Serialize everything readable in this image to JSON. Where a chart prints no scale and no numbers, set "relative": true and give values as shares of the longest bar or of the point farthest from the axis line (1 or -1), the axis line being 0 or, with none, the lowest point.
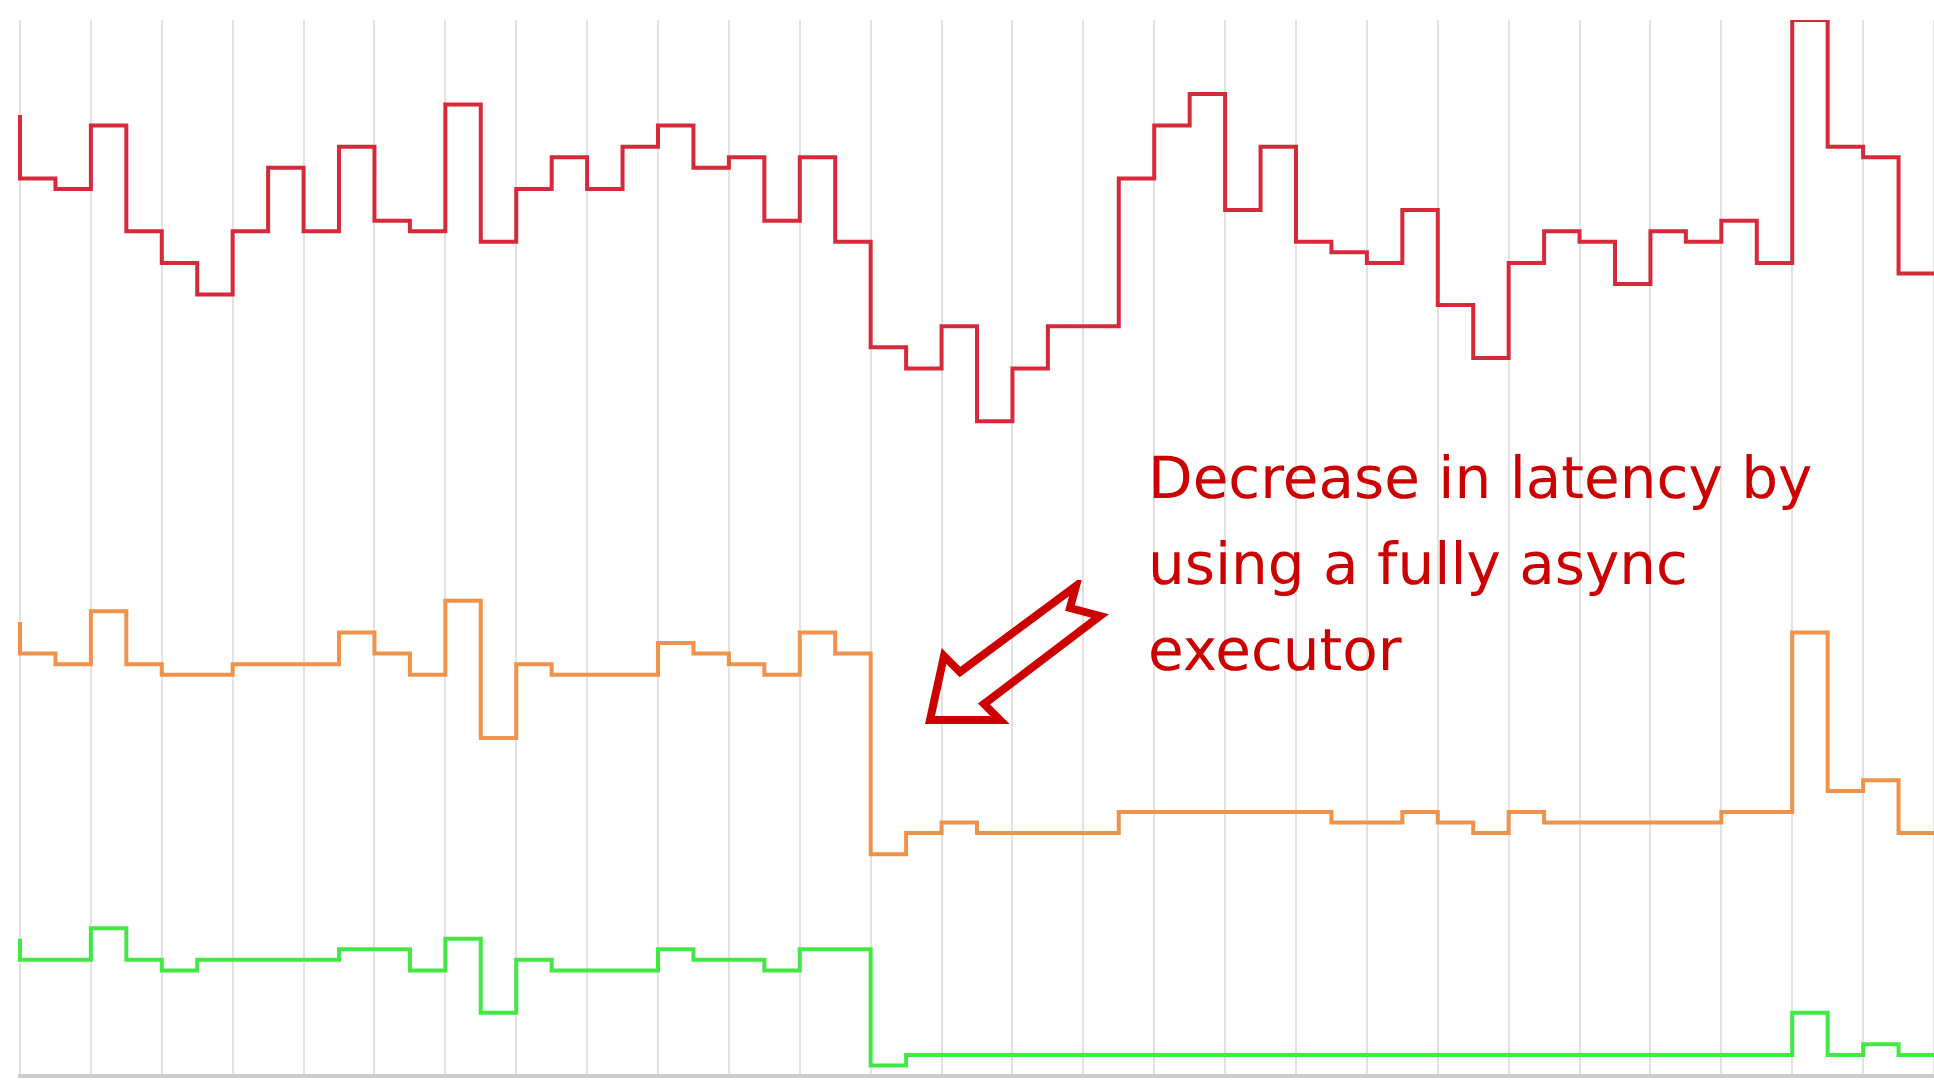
{
  "chart_data": {
    "type": "step",
    "relative": true,
    "grid": "x",
    "legend": false,
    "categories": [
      null,
      null,
      null,
      null,
      null,
      null,
      null,
      null,
      null,
      null,
      null,
      null,
      null,
      null,
      null,
      null,
      null,
      null,
      null,
      null,
      null,
      null,
      null,
      null,
      null,
      null,
      null,
      null,
      null,
      null,
      null,
      null,
      null,
      null,
      null,
      null,
      null,
      null,
      null,
      null,
      null,
      null,
      null,
      null,
      null,
      null,
      null,
      null,
      null,
      null,
      null,
      null,
      null,
      null,
      null
    ],
    "series": [
      {
        "color": "#d42a3a",
        "values": [
          0.91,
          0.85,
          0.84,
          0.9,
          0.8,
          0.77,
          0.74,
          0.8,
          0.86,
          0.8,
          0.88,
          0.81,
          0.8,
          0.92,
          0.79,
          0.84,
          0.87,
          0.84,
          0.88,
          0.9,
          0.86,
          0.87,
          0.81,
          0.87,
          0.79,
          0.69,
          0.67,
          0.71,
          0.62,
          0.67,
          0.71,
          0.71,
          0.85,
          0.9,
          0.93,
          0.82,
          0.88,
          0.79,
          0.78,
          0.77,
          0.82,
          0.73,
          0.68,
          0.77,
          0.8,
          0.79,
          0.75,
          0.8,
          0.79,
          0.81,
          0.77,
          1,
          0.88,
          0.87,
          0.76
        ]
      },
      {
        "color": "#f0924a",
        "values": [
          0.43,
          0.4,
          0.39,
          0.44,
          0.39,
          0.38,
          0.38,
          0.39,
          0.39,
          0.39,
          0.42,
          0.4,
          0.38,
          0.45,
          0.32,
          0.39,
          0.38,
          0.38,
          0.38,
          0.41,
          0.4,
          0.39,
          0.38,
          0.42,
          0.4,
          0.21,
          0.23,
          0.24,
          0.23,
          0.23,
          0.23,
          0.23,
          0.25,
          0.25,
          0.25,
          0.25,
          0.25,
          0.25,
          0.24,
          0.24,
          0.25,
          0.24,
          0.23,
          0.25,
          0.24,
          0.24,
          0.24,
          0.24,
          0.24,
          0.25,
          0.25,
          0.42,
          0.27,
          0.28,
          0.23
        ]
      },
      {
        "color": "#44e844",
        "values": [
          0.13,
          0.11,
          0.11,
          0.14,
          0.11,
          0.1,
          0.11,
          0.11,
          0.11,
          0.11,
          0.12,
          0.12,
          0.1,
          0.13,
          0.06,
          0.11,
          0.1,
          0.1,
          0.1,
          0.12,
          0.11,
          0.11,
          0.1,
          0.12,
          0.12,
          0.01,
          0.02,
          0.02,
          0.02,
          0.02,
          0.02,
          0.02,
          0.02,
          0.02,
          0.02,
          0.02,
          0.02,
          0.02,
          0.02,
          0.02,
          0.02,
          0.02,
          0.02,
          0.02,
          0.02,
          0.02,
          0.02,
          0.02,
          0.02,
          0.02,
          0.02,
          0.06,
          0.02,
          0.03,
          0.02
        ]
      }
    ],
    "annotations": [
      "Decrease in latency by using a fully async executor"
    ]
  }
}
